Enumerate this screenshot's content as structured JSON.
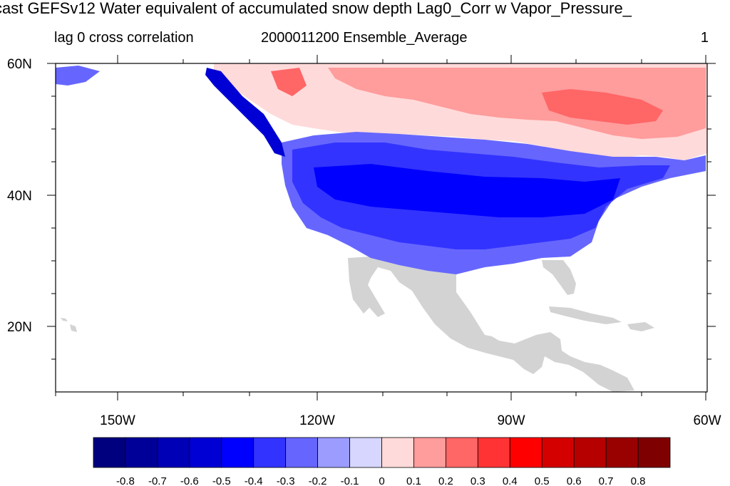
{
  "title": "cast GEFSv12 Water equivalent of accumulated snow depth Lag0_Corr w Vapor_Pressure_",
  "subtitle": {
    "left": "lag 0 cross correlation",
    "center": "2000011200 Ensemble_Average",
    "right": "1"
  },
  "map": {
    "lat_ticks": [
      "60N",
      "40N",
      "20N"
    ],
    "lon_ticks": [
      "150W",
      "120W",
      "90W",
      "60W"
    ],
    "lat_range": [
      10,
      60
    ],
    "lon_range": [
      -160,
      -60
    ],
    "missing_color": "#d3d3d3"
  },
  "colorbar": {
    "colors": [
      "#00007f",
      "#000099",
      "#0000b6",
      "#0000d4",
      "#0000ff",
      "#3333ff",
      "#6666ff",
      "#9c9cff",
      "#d6d6ff",
      "#ffdada",
      "#ff9c9c",
      "#ff6666",
      "#ff3333",
      "#ff0000",
      "#d40000",
      "#b60000",
      "#990000",
      "#7f0000"
    ],
    "labels": [
      "-0.8",
      "-0.7",
      "-0.6",
      "-0.5",
      "-0.4",
      "-0.3",
      "-0.2",
      "-0.1",
      "0",
      "0.1",
      "0.2",
      "0.3",
      "0.4",
      "0.5",
      "0.6",
      "0.7",
      "0.8"
    ]
  }
}
